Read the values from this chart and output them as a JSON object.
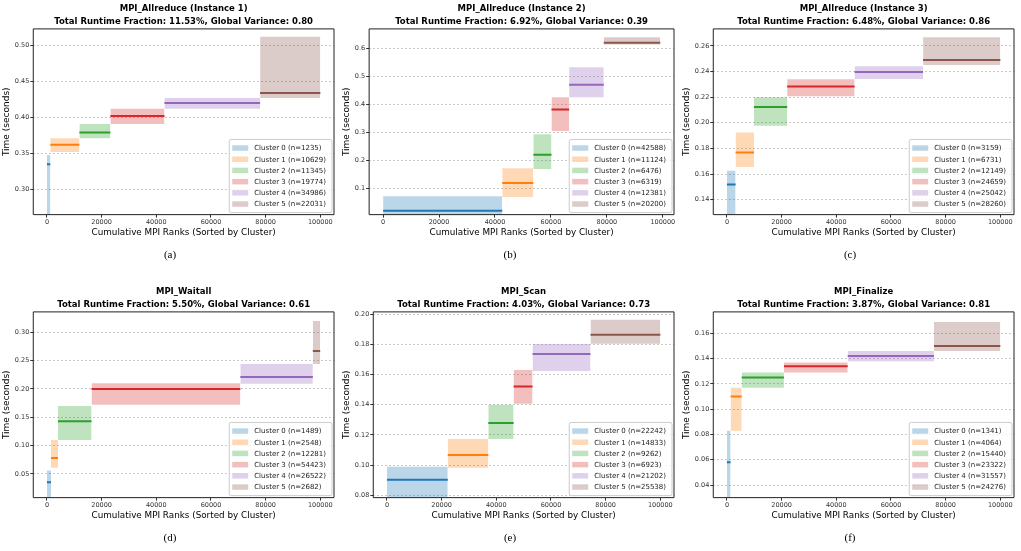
{
  "chart_data": [
    {
      "type": "line",
      "title": "MPI_Allreduce (Instance 1)",
      "subtitle": "Total Runtime Fraction: 11.53%, Global Variance: 0.80",
      "xlabel": "Cumulative MPI Ranks (Sorted by Cluster)",
      "ylabel": "Time (seconds)",
      "annotations": [
        "(a)"
      ],
      "xlim": [
        -5000,
        105000
      ],
      "xticks": [
        0,
        20000,
        40000,
        60000,
        80000,
        100000
      ],
      "ylim": [
        0.265,
        0.523
      ],
      "yticks": [
        {
          "value": 0.3,
          "label": "0.30"
        },
        0.35,
        {
          "value": 0.4,
          "label": "0.40"
        },
        0.45,
        {
          "value": 0.5,
          "label": "0.50"
        }
      ],
      "grid": "y",
      "legend": "bottom right",
      "series": [
        {
          "name": "Cluster 0 (n=1235)",
          "color": "#1f77b4",
          "x": [
            0,
            1235
          ],
          "values": [
            0.335,
            0.335
          ],
          "lower": [
            0.265,
            0.265
          ],
          "upper": [
            0.348,
            0.348
          ]
        },
        {
          "name": "Cluster 1 (n=10629)",
          "color": "#ff7f0e",
          "x": [
            1235,
            11864
          ],
          "values": [
            0.362,
            0.362
          ],
          "lower": [
            0.352,
            0.352
          ],
          "upper": [
            0.371,
            0.371
          ]
        },
        {
          "name": "Cluster 2 (n=11345)",
          "color": "#2ca02c",
          "x": [
            11864,
            23209
          ],
          "values": [
            0.379,
            0.379
          ],
          "lower": [
            0.371,
            0.371
          ],
          "upper": [
            0.391,
            0.391
          ]
        },
        {
          "name": "Cluster 3 (n=19774)",
          "color": "#d62728",
          "x": [
            23209,
            42983
          ],
          "values": [
            0.402,
            0.402
          ],
          "lower": [
            0.391,
            0.391
          ],
          "upper": [
            0.412,
            0.412
          ]
        },
        {
          "name": "Cluster 4 (n=34986)",
          "color": "#9467bd",
          "x": [
            42983,
            77969
          ],
          "values": [
            0.42,
            0.42
          ],
          "lower": [
            0.412,
            0.412
          ],
          "upper": [
            0.427,
            0.427
          ]
        },
        {
          "name": "Cluster 5 (n=22031)",
          "color": "#8c564b",
          "x": [
            77969,
            100000
          ],
          "values": [
            0.434,
            0.434
          ],
          "lower": [
            0.427,
            0.427
          ],
          "upper": [
            0.512,
            0.512
          ]
        }
      ]
    },
    {
      "type": "line",
      "title": "MPI_Allreduce (Instance 2)",
      "subtitle": "Total Runtime Fraction: 6.92%, Global Variance: 0.39",
      "xlabel": "Cumulative MPI Ranks (Sorted by Cluster)",
      "ylabel": "Time (seconds)",
      "annotations": [
        "(b)"
      ],
      "xlim": [
        -5000,
        104000
      ],
      "xticks": [
        0,
        20000,
        40000,
        60000,
        80000,
        100000
      ],
      "ylim": [
        0.007,
        0.67
      ],
      "yticks": [
        0.1,
        0.2,
        0.3,
        0.4,
        0.5,
        0.6
      ],
      "grid": "y",
      "legend": "bottom right",
      "series": [
        {
          "name": "Cluster 0 (n=42588)",
          "color": "#1f77b4",
          "x": [
            0,
            42588
          ],
          "values": [
            0.021,
            0.021
          ],
          "lower": [
            0.007,
            0.007
          ],
          "upper": [
            0.073,
            0.073
          ]
        },
        {
          "name": "Cluster 1 (n=11124)",
          "color": "#ff7f0e",
          "x": [
            42588,
            53712
          ],
          "values": [
            0.12,
            0.12
          ],
          "lower": [
            0.07,
            0.07
          ],
          "upper": [
            0.173,
            0.173
          ]
        },
        {
          "name": "Cluster 2 (n=6476)",
          "color": "#2ca02c",
          "x": [
            53712,
            60188
          ],
          "values": [
            0.221,
            0.221
          ],
          "lower": [
            0.17,
            0.17
          ],
          "upper": [
            0.294,
            0.294
          ]
        },
        {
          "name": "Cluster 3 (n=6319)",
          "color": "#d62728",
          "x": [
            60188,
            66507
          ],
          "values": [
            0.382,
            0.382
          ],
          "lower": [
            0.306,
            0.306
          ],
          "upper": [
            0.426,
            0.426
          ]
        },
        {
          "name": "Cluster 4 (n=12381)",
          "color": "#9467bd",
          "x": [
            66507,
            78888
          ],
          "values": [
            0.471,
            0.471
          ],
          "lower": [
            0.426,
            0.426
          ],
          "upper": [
            0.533,
            0.533
          ]
        },
        {
          "name": "Cluster 5 (n=20200)",
          "color": "#8c564b",
          "x": [
            78888,
            99088
          ],
          "values": [
            0.621,
            0.621
          ],
          "lower": [
            0.614,
            0.614
          ],
          "upper": [
            0.64,
            0.64
          ]
        }
      ]
    },
    {
      "type": "line",
      "title": "MPI_Allreduce (Instance 3)",
      "subtitle": "Total Runtime Fraction: 6.48%, Global Variance: 0.86",
      "xlabel": "Cumulative MPI Ranks (Sorted by Cluster)",
      "ylabel": "Time (seconds)",
      "annotations": [
        "(c)"
      ],
      "xlim": [
        -5000,
        105000
      ],
      "xticks": [
        0,
        20000,
        40000,
        60000,
        80000,
        100000
      ],
      "ylim": [
        0.1283,
        0.2733
      ],
      "yticks": [
        0.14,
        0.16,
        0.18,
        {
          "value": 0.2,
          "label": "0.20"
        },
        0.22,
        0.24,
        0.26
      ],
      "grid": "y",
      "legend": "bottom right",
      "series": [
        {
          "name": "Cluster 0 (n=3159)",
          "color": "#1f77b4",
          "x": [
            0,
            3159
          ],
          "values": [
            0.1519,
            0.1519
          ],
          "lower": [
            0.1283,
            0.1283
          ],
          "upper": [
            0.1626,
            0.1626
          ]
        },
        {
          "name": "Cluster 1 (n=6731)",
          "color": "#ff7f0e",
          "x": [
            3159,
            9890
          ],
          "values": [
            0.1769,
            0.1769
          ],
          "lower": [
            0.1655,
            0.1655
          ],
          "upper": [
            0.1925,
            0.1925
          ]
        },
        {
          "name": "Cluster 2 (n=12149)",
          "color": "#2ca02c",
          "x": [
            9890,
            22039
          ],
          "values": [
            0.2124,
            0.2124
          ],
          "lower": [
            0.1977,
            0.1977
          ],
          "upper": [
            0.22,
            0.22
          ]
        },
        {
          "name": "Cluster 3 (n=24659)",
          "color": "#d62728",
          "x": [
            22039,
            46698
          ],
          "values": [
            0.2283,
            0.2283
          ],
          "lower": [
            0.2208,
            0.2208
          ],
          "upper": [
            0.234,
            0.234
          ]
        },
        {
          "name": "Cluster 4 (n=25042)",
          "color": "#9467bd",
          "x": [
            46698,
            71740
          ],
          "values": [
            0.2397,
            0.2397
          ],
          "lower": [
            0.2342,
            0.2342
          ],
          "upper": [
            0.2442,
            0.2442
          ]
        },
        {
          "name": "Cluster 5 (n=28260)",
          "color": "#8c564b",
          "x": [
            71740,
            100000
          ],
          "values": [
            0.2491,
            0.2491
          ],
          "lower": [
            0.2452,
            0.2452
          ],
          "upper": [
            0.2668,
            0.2668
          ]
        }
      ]
    },
    {
      "type": "line",
      "title": "MPI_Waitall",
      "subtitle": "Total Runtime Fraction: 5.50%, Global Variance: 0.61",
      "xlabel": "Cumulative MPI Ranks (Sorted by Cluster)",
      "ylabel": "Time (seconds)",
      "annotations": [
        "(d)"
      ],
      "xlim": [
        -5000,
        105000
      ],
      "xticks": [
        0,
        20000,
        40000,
        60000,
        80000,
        100000
      ],
      "ylim": [
        0.008,
        0.336
      ],
      "yticks": [
        0.05,
        {
          "value": 0.1,
          "label": "0.10"
        },
        0.15,
        {
          "value": 0.2,
          "label": "0.20"
        },
        0.25,
        {
          "value": 0.3,
          "label": "0.30"
        }
      ],
      "grid": "y",
      "legend": "bottom right",
      "series": [
        {
          "name": "Cluster 0 (n=1489)",
          "color": "#1f77b4",
          "x": [
            0,
            1489
          ],
          "values": [
            0.035,
            0.035
          ],
          "lower": [
            0.008,
            0.008
          ],
          "upper": [
            0.056,
            0.056
          ]
        },
        {
          "name": "Cluster 1 (n=2548)",
          "color": "#ff7f0e",
          "x": [
            1489,
            4037
          ],
          "values": [
            0.078,
            0.078
          ],
          "lower": [
            0.061,
            0.061
          ],
          "upper": [
            0.11,
            0.11
          ]
        },
        {
          "name": "Cluster 2 (n=12281)",
          "color": "#2ca02c",
          "x": [
            4037,
            16318
          ],
          "values": [
            0.143,
            0.143
          ],
          "lower": [
            0.11,
            0.11
          ],
          "upper": [
            0.17,
            0.17
          ]
        },
        {
          "name": "Cluster 3 (n=54423)",
          "color": "#d62728",
          "x": [
            16318,
            70741
          ],
          "values": [
            0.2,
            0.2
          ],
          "lower": [
            0.172,
            0.172
          ],
          "upper": [
            0.21,
            0.21
          ]
        },
        {
          "name": "Cluster 4 (n=26522)",
          "color": "#9467bd",
          "x": [
            70741,
            97263
          ],
          "values": [
            0.221,
            0.221
          ],
          "lower": [
            0.209,
            0.209
          ],
          "upper": [
            0.244,
            0.244
          ]
        },
        {
          "name": "Cluster 5 (n=2682)",
          "color": "#8c564b",
          "x": [
            97263,
            99945
          ],
          "values": [
            0.267,
            0.267
          ],
          "lower": [
            0.244,
            0.244
          ],
          "upper": [
            0.32,
            0.32
          ]
        }
      ]
    },
    {
      "type": "line",
      "title": "MPI_Scan",
      "subtitle": "Total Runtime Fraction: 4.03%, Global Variance: 0.73",
      "xlabel": "Cumulative MPI Ranks (Sorted by Cluster)",
      "ylabel": "Time (seconds)",
      "annotations": [
        "(e)"
      ],
      "xlim": [
        -5000,
        105000
      ],
      "xticks": [
        0,
        20000,
        40000,
        60000,
        80000,
        100000
      ],
      "ylim": [
        0.0785,
        0.2015
      ],
      "yticks": [
        0.08,
        {
          "value": 0.1,
          "label": "0.10"
        },
        0.12,
        0.14,
        0.16,
        0.18,
        {
          "value": 0.2,
          "label": "0.20"
        }
      ],
      "grid": "y",
      "legend": "bottom right",
      "series": [
        {
          "name": "Cluster 0 (n=22242)",
          "color": "#1f77b4",
          "x": [
            0,
            22242
          ],
          "values": [
            0.0903,
            0.0903
          ],
          "lower": [
            0.0785,
            0.0785
          ],
          "upper": [
            0.0989,
            0.0989
          ]
        },
        {
          "name": "Cluster 1 (n=14833)",
          "color": "#ff7f0e",
          "x": [
            22242,
            37075
          ],
          "values": [
            0.1068,
            0.1068
          ],
          "lower": [
            0.0983,
            0.0983
          ],
          "upper": [
            0.1174,
            0.1174
          ]
        },
        {
          "name": "Cluster 2 (n=9262)",
          "color": "#2ca02c",
          "x": [
            37075,
            46337
          ],
          "values": [
            0.1279,
            0.1279
          ],
          "lower": [
            0.1174,
            0.1174
          ],
          "upper": [
            0.14,
            0.14
          ]
        },
        {
          "name": "Cluster 3 (n=6923)",
          "color": "#d62728",
          "x": [
            46337,
            53260
          ],
          "values": [
            0.1521,
            0.1521
          ],
          "lower": [
            0.1407,
            0.1407
          ],
          "upper": [
            0.1631,
            0.1631
          ]
        },
        {
          "name": "Cluster 4 (n=21202)",
          "color": "#9467bd",
          "x": [
            53260,
            74462
          ],
          "values": [
            0.1736,
            0.1736
          ],
          "lower": [
            0.1624,
            0.1624
          ],
          "upper": [
            0.1802,
            0.1802
          ]
        },
        {
          "name": "Cluster 5 (n=25538)",
          "color": "#8c564b",
          "x": [
            74462,
            100000
          ],
          "values": [
            0.1864,
            0.1864
          ],
          "lower": [
            0.1804,
            0.1804
          ],
          "upper": [
            0.1963,
            0.1963
          ]
        }
      ]
    },
    {
      "type": "line",
      "title": "MPI_Finalize",
      "subtitle": "Total Runtime Fraction: 3.87%, Global Variance: 0.81",
      "xlabel": "Cumulative MPI Ranks (Sorted by Cluster)",
      "ylabel": "Time (seconds)",
      "annotations": [
        "(f)"
      ],
      "xlim": [
        -5000,
        105000
      ],
      "xticks": [
        0,
        20000,
        40000,
        60000,
        80000,
        100000
      ],
      "ylim": [
        0.03,
        0.177
      ],
      "yticks": [
        0.04,
        0.06,
        0.08,
        {
          "value": 0.1,
          "label": "0.10"
        },
        0.12,
        0.14,
        0.16
      ],
      "grid": "y",
      "legend": "bottom right",
      "series": [
        {
          "name": "Cluster 0 (n=1341)",
          "color": "#1f77b4",
          "x": [
            0,
            1341
          ],
          "values": [
            0.058,
            0.058
          ],
          "lower": [
            0.03,
            0.03
          ],
          "upper": [
            0.083,
            0.083
          ]
        },
        {
          "name": "Cluster 1 (n=4064)",
          "color": "#ff7f0e",
          "x": [
            1341,
            5405
          ],
          "values": [
            0.11,
            0.11
          ],
          "lower": [
            0.083,
            0.083
          ],
          "upper": [
            0.117,
            0.117
          ]
        },
        {
          "name": "Cluster 2 (n=15440)",
          "color": "#2ca02c",
          "x": [
            5405,
            20845
          ],
          "values": [
            0.125,
            0.125
          ],
          "lower": [
            0.117,
            0.117
          ],
          "upper": [
            0.129,
            0.129
          ]
        },
        {
          "name": "Cluster 3 (n=23322)",
          "color": "#d62728",
          "x": [
            20845,
            44167
          ],
          "values": [
            0.134,
            0.134
          ],
          "lower": [
            0.129,
            0.129
          ],
          "upper": [
            0.137,
            0.137
          ]
        },
        {
          "name": "Cluster 4 (n=31557)",
          "color": "#9467bd",
          "x": [
            44167,
            75724
          ],
          "values": [
            0.142,
            0.142
          ],
          "lower": [
            0.138,
            0.138
          ],
          "upper": [
            0.146,
            0.146
          ]
        },
        {
          "name": "Cluster 5 (n=24276)",
          "color": "#8c564b",
          "x": [
            75724,
            100000
          ],
          "values": [
            0.15,
            0.15
          ],
          "lower": [
            0.146,
            0.146
          ],
          "upper": [
            0.169,
            0.169
          ]
        }
      ]
    }
  ]
}
